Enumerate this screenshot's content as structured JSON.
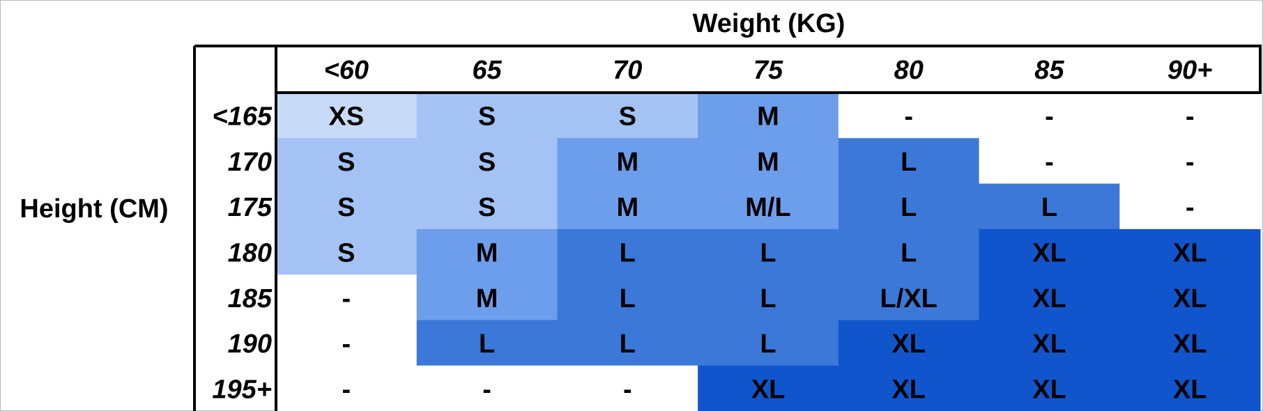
{
  "table": {
    "column_title": "Weight (KG)",
    "row_title": "Height (CM)",
    "columns": [
      "<60",
      "65",
      "70",
      "75",
      "80",
      "85",
      "90+"
    ],
    "rows": [
      {
        "label": "<165",
        "cells": [
          "XS",
          "S",
          "S",
          "M",
          "-",
          "-",
          "-"
        ]
      },
      {
        "label": "170",
        "cells": [
          "S",
          "S",
          "M",
          "M",
          "L",
          "-",
          "-"
        ]
      },
      {
        "label": "175",
        "cells": [
          "S",
          "S",
          "M",
          "M/L",
          "L",
          "L",
          "-"
        ]
      },
      {
        "label": "180",
        "cells": [
          "S",
          "M",
          "L",
          "L",
          "L",
          "XL",
          "XL"
        ]
      },
      {
        "label": "185",
        "cells": [
          "-",
          "M",
          "L",
          "L",
          "L/XL",
          "XL",
          "XL"
        ]
      },
      {
        "label": "190",
        "cells": [
          "-",
          "L",
          "L",
          "L",
          "XL",
          "XL",
          "XL"
        ]
      },
      {
        "label": "195+",
        "cells": [
          "-",
          "-",
          "-",
          "XL",
          "XL",
          "XL",
          "XL"
        ]
      }
    ],
    "size_colors": {
      "XS": "#c9daf8",
      "S": "#a4c2f4",
      "M": "#6d9eeb",
      "M/L": "#6d9eeb",
      "L": "#3c78d8",
      "L/XL": "#3c78d8",
      "XL": "#1155cc"
    }
  }
}
